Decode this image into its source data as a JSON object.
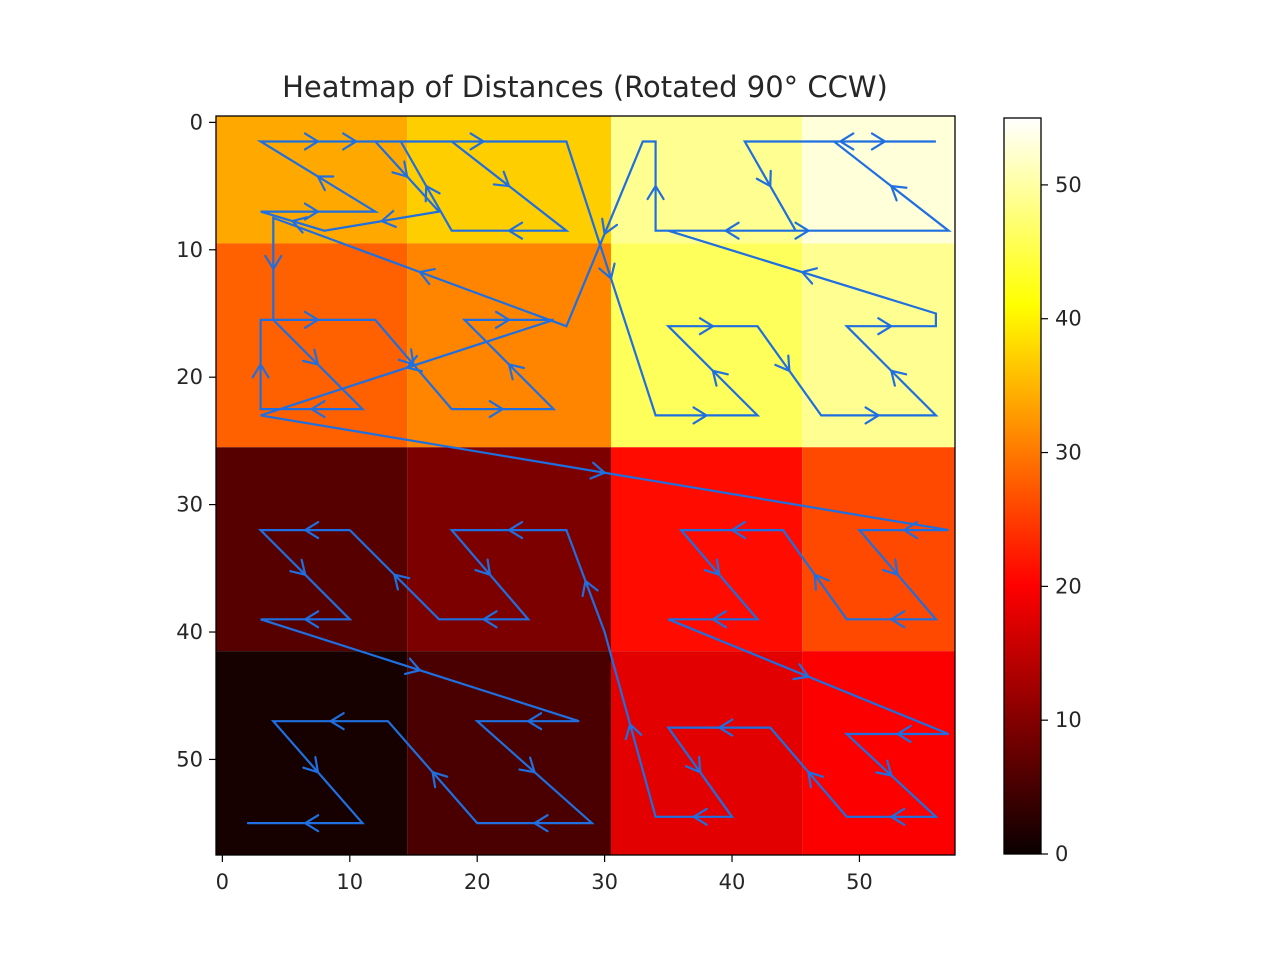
{
  "chart_data": {
    "type": "heatmap",
    "title": "Heatmap of Distances (Rotated 90° CCW)",
    "xlabel": "",
    "ylabel": "",
    "grid": false,
    "colormap": "hot",
    "xlim": [
      -0.5,
      57.5
    ],
    "ylim": [
      57.5,
      -0.5
    ],
    "x_ticks": [
      0,
      10,
      20,
      30,
      40,
      50
    ],
    "y_ticks": [
      0,
      10,
      20,
      30,
      40,
      50
    ],
    "colorbar": {
      "min": 0,
      "max": 55,
      "ticks": [
        0,
        10,
        20,
        30,
        40,
        50
      ]
    },
    "blocks": [
      {
        "x": [
          0,
          14
        ],
        "y": [
          0,
          9
        ],
        "value": 34
      },
      {
        "x": [
          15,
          30
        ],
        "y": [
          0,
          9
        ],
        "value": 37
      },
      {
        "x": [
          31,
          45
        ],
        "y": [
          0,
          9
        ],
        "value": 49
      },
      {
        "x": [
          46,
          57
        ],
        "y": [
          0,
          9
        ],
        "value": 53
      },
      {
        "x": [
          0,
          14
        ],
        "y": [
          10,
          25
        ],
        "value": 28
      },
      {
        "x": [
          15,
          30
        ],
        "y": [
          10,
          25
        ],
        "value": 31
      },
      {
        "x": [
          31,
          45
        ],
        "y": [
          10,
          25
        ],
        "value": 46
      },
      {
        "x": [
          46,
          57
        ],
        "y": [
          10,
          25
        ],
        "value": 49
      },
      {
        "x": [
          0,
          14
        ],
        "y": [
          26,
          41
        ],
        "value": 6
      },
      {
        "x": [
          15,
          30
        ],
        "y": [
          26,
          41
        ],
        "value": 9
      },
      {
        "x": [
          31,
          45
        ],
        "y": [
          26,
          41
        ],
        "value": 21
      },
      {
        "x": [
          46,
          57
        ],
        "y": [
          26,
          41
        ],
        "value": 26
      },
      {
        "x": [
          0,
          14
        ],
        "y": [
          42,
          57
        ],
        "value": 1
      },
      {
        "x": [
          15,
          30
        ],
        "y": [
          42,
          57
        ],
        "value": 5
      },
      {
        "x": [
          31,
          45
        ],
        "y": [
          42,
          57
        ],
        "value": 17
      },
      {
        "x": [
          46,
          57
        ],
        "y": [
          42,
          57
        ],
        "value": 19
      }
    ],
    "annotation_path": [
      [
        3,
        1.5
      ],
      [
        12,
        1.5
      ],
      [
        17,
        7
      ],
      [
        8,
        8.5
      ],
      [
        3,
        7
      ],
      [
        12,
        7
      ],
      [
        3,
        1.5
      ],
      [
        18,
        1.5
      ],
      [
        27,
        8.5
      ],
      [
        18,
        8.5
      ],
      [
        14,
        1.5
      ],
      [
        27,
        1.5
      ],
      [
        34,
        23
      ],
      [
        42,
        23
      ],
      [
        35,
        16
      ],
      [
        42,
        16
      ],
      [
        47,
        23
      ],
      [
        56,
        23
      ],
      [
        49,
        16
      ],
      [
        56,
        16
      ],
      [
        56,
        15
      ],
      [
        35,
        8.5
      ],
      [
        57,
        8.5
      ],
      [
        48,
        1.5
      ],
      [
        56,
        1.5
      ],
      [
        56,
        1.5
      ],
      [
        41,
        1.5
      ],
      [
        45,
        8.5
      ],
      [
        34,
        8.5
      ],
      [
        34,
        1.5
      ],
      [
        33,
        1.5
      ],
      [
        27,
        16
      ],
      [
        4,
        7.5
      ],
      [
        4,
        15.5
      ],
      [
        11,
        22.5
      ],
      [
        3,
        22.5
      ],
      [
        3,
        15.5
      ],
      [
        12,
        15.5
      ],
      [
        18,
        22.5
      ],
      [
        26,
        22.5
      ],
      [
        19,
        15.5
      ],
      [
        26,
        15.5
      ],
      [
        3,
        23
      ],
      [
        57,
        32
      ],
      [
        50,
        32
      ],
      [
        56,
        39
      ],
      [
        49,
        39
      ],
      [
        44,
        32
      ],
      [
        36,
        32
      ],
      [
        42,
        39
      ],
      [
        35,
        39
      ],
      [
        57,
        48
      ],
      [
        49,
        48
      ],
      [
        56,
        54.5
      ],
      [
        49,
        54.5
      ],
      [
        43,
        47.5
      ],
      [
        35,
        47.5
      ],
      [
        40,
        54.5
      ],
      [
        34,
        54.5
      ],
      [
        30,
        40
      ],
      [
        27,
        32
      ],
      [
        18,
        32
      ],
      [
        24,
        39
      ],
      [
        17,
        39
      ],
      [
        10,
        32
      ],
      [
        3,
        32
      ],
      [
        10,
        39
      ],
      [
        3,
        39
      ],
      [
        28,
        47
      ],
      [
        20,
        47
      ],
      [
        29,
        55
      ],
      [
        20,
        55
      ],
      [
        13,
        47
      ],
      [
        4,
        47
      ],
      [
        11,
        55
      ],
      [
        2,
        55
      ]
    ]
  }
}
